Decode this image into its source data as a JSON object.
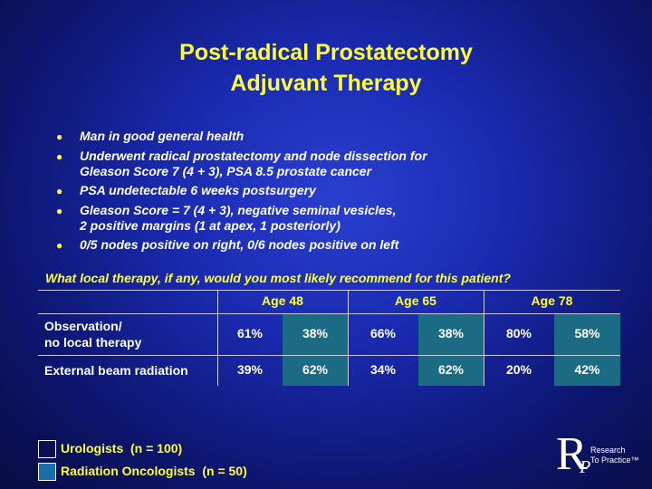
{
  "title": [
    "Post-radical Prostatectomy",
    "Adjuvant Therapy"
  ],
  "bullets": [
    [
      "Man in good general health"
    ],
    [
      "Underwent radical prostatectomy and node dissection for",
      "Gleason Score 7 (4 + 3), PSA 8.5 prostate cancer"
    ],
    [
      "PSA undetectable 6 weeks postsurgery"
    ],
    [
      "Gleason Score = 7 (4 + 3), negative seminal vesicles,",
      "2 positive margins (1 at apex, 1 posteriorly)"
    ],
    [
      "0/5 nodes positive on right, 0/6 nodes positive on left"
    ]
  ],
  "question": "What local therapy, if any, would you most likely recommend for this patient?",
  "table": {
    "header": [
      "Age 48",
      "Age 65",
      "Age 78"
    ],
    "rows": [
      {
        "label": [
          "Observation/",
          "no local therapy"
        ],
        "cells": [
          "61%",
          "38%",
          "66%",
          "38%",
          "80%",
          "58%"
        ]
      },
      {
        "label": [
          "External beam radiation"
        ],
        "cells": [
          "39%",
          "62%",
          "34%",
          "62%",
          "20%",
          "42%"
        ]
      }
    ]
  },
  "legend": [
    "Urologists  (n = 100)",
    "Radiation Oncologists  (n = 50)"
  ],
  "logo": {
    "letter1": "R",
    "letter2": "P",
    "text": [
      "Research",
      "To Practice™"
    ]
  }
}
